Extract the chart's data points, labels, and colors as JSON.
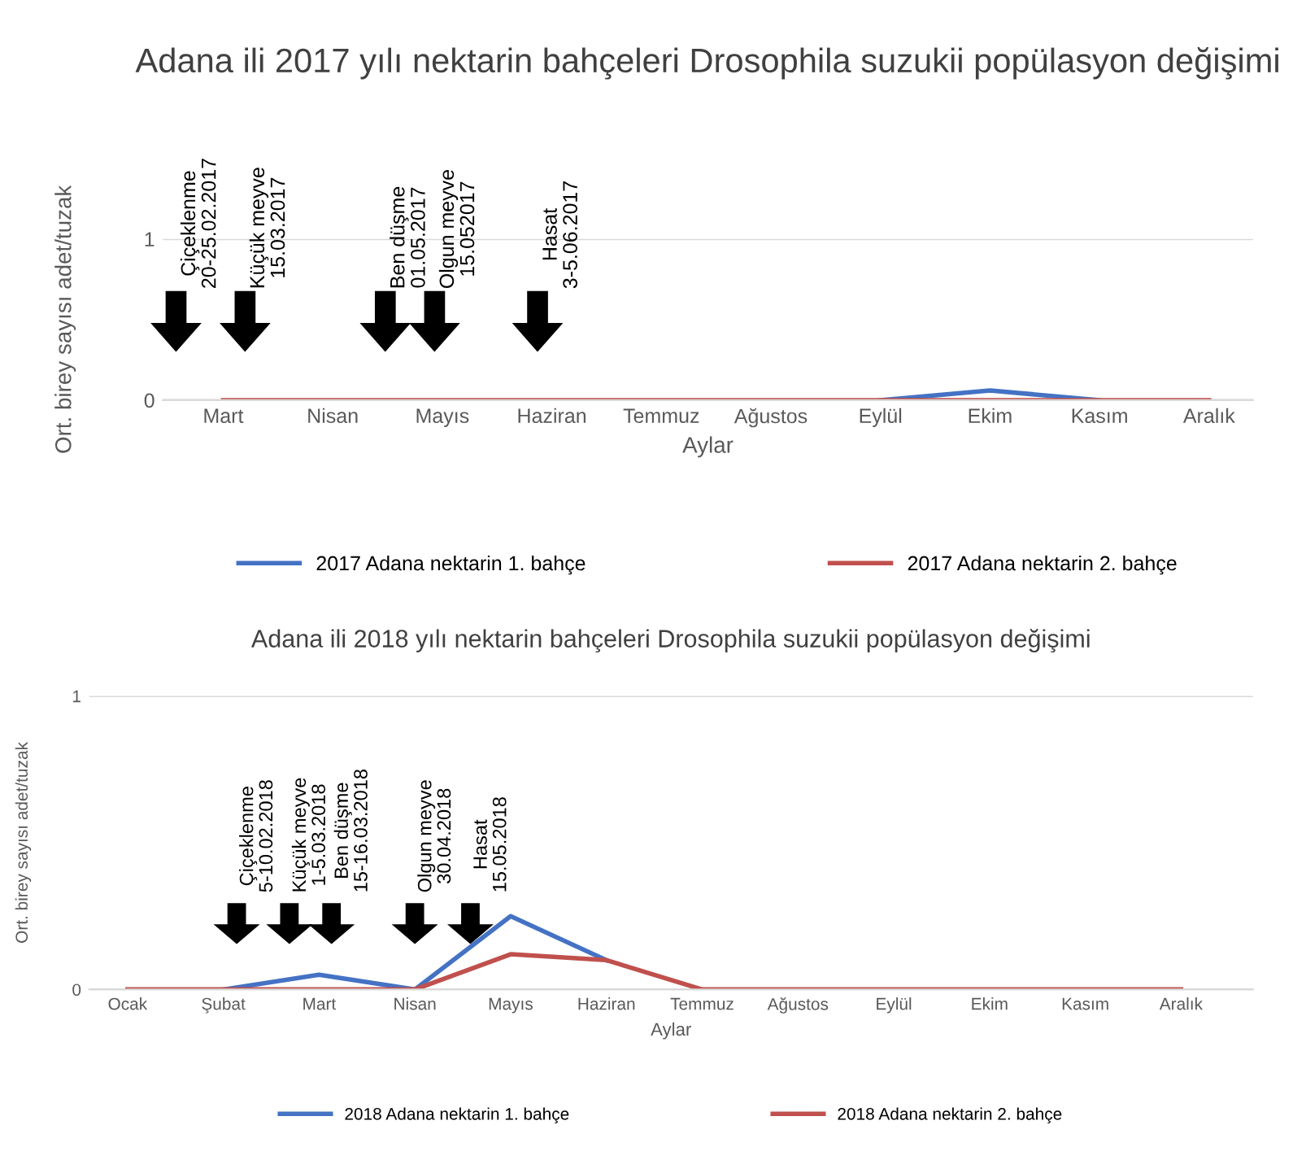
{
  "chart_data": [
    {
      "type": "line",
      "title": "Adana ili 2017 yılı nektarin bahçeleri Drosophila suzukii popülasyon değişimi",
      "xlabel": "Aylar",
      "ylabel": "Ort. birey sayısı adet/tuzak",
      "categories": [
        "Mart",
        "Nisan",
        "Mayıs",
        "Haziran",
        "Temmuz",
        "Ağustos",
        "Eylül",
        "Ekim",
        "Kasım",
        "Aralık"
      ],
      "series": [
        {
          "name": "2017 Adana nektarin 1. bahçe",
          "color": "#4472c4",
          "values": [
            null,
            null,
            null,
            null,
            null,
            null,
            0,
            0.06,
            0,
            null
          ]
        },
        {
          "name": "2017 Adana nektarin 2. bahçe",
          "color": "#c0504d",
          "values": [
            0,
            0,
            0,
            0,
            0,
            0,
            0,
            0,
            0,
            0
          ]
        }
      ],
      "ylim": [
        0,
        1
      ],
      "yticks": [
        0,
        1
      ],
      "grid": "y",
      "legend": "bottom",
      "marker": "none",
      "line_style": "solid",
      "annotations": [
        "Çiçeklenme\n20-25.02.2017",
        "Küçük meyve\n15.03.2017",
        "Ben düşme\n01.05.2017",
        "Olgun meyve\n15.052017",
        "Hasat\n3-5.06.2017"
      ]
    },
    {
      "type": "line",
      "title": "Adana ili 2018 yılı nektarin bahçeleri Drosophila suzukii popülasyon değişimi",
      "xlabel": "Aylar",
      "ylabel": "Ort. birey sayısı adet/tuzak",
      "categories": [
        "Ocak",
        "Şubat",
        "Mart",
        "Nisan",
        "Mayıs",
        "Haziran",
        "Temmuz",
        "Ağustos",
        "Eylül",
        "Ekim",
        "Kasım",
        "Aralık"
      ],
      "series": [
        {
          "name": "2018 Adana nektarin 1. bahçe",
          "color": "#4472c4",
          "values": [
            null,
            0,
            0.05,
            0,
            0.25,
            0.1,
            null,
            null,
            null,
            null,
            null,
            null
          ]
        },
        {
          "name": "2018 Adana nektarin 2. bahçe",
          "color": "#c0504d",
          "values": [
            0,
            0,
            0,
            0,
            0.12,
            0.1,
            0,
            0,
            0,
            0,
            0,
            0
          ]
        }
      ],
      "ylim": [
        0,
        1
      ],
      "yticks": [
        0,
        1
      ],
      "grid": "y",
      "legend": "bottom",
      "marker": "none",
      "line_style": "solid",
      "annotations": [
        "Çiçeklenme\n5-10.02.2018",
        "Küçük meyve\n1-5.03.2018",
        "Ben düşme\n15-16.03.2018",
        "Olgun meyve\n30.04.2018",
        "Hasat\n15.05.2018"
      ]
    }
  ]
}
